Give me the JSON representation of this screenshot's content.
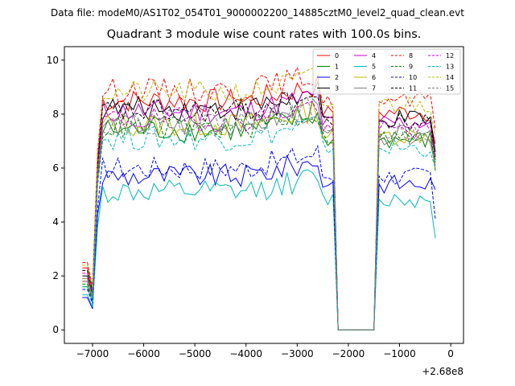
{
  "figure": {
    "suptitle": "Data file: modeM0/AS1T02_054T01_9000002200_14885cztM0_level2_quad_clean.evt",
    "title": "Quadrant 3 module wise count rates with 100.0s bins."
  },
  "chart_data": {
    "type": "line",
    "title": "Quadrant 3 module wise count rates with 100.0s bins.",
    "xlabel": "",
    "ylabel": "",
    "x_offset_label": "+2.68e8",
    "xlim": [
      -7550,
      250
    ],
    "ylim": [
      -0.5,
      10.5
    ],
    "xticks": [
      -7000,
      -6000,
      -5000,
      -4000,
      -3000,
      -2000,
      -1000,
      0
    ],
    "xtick_labels": [
      "−7000",
      "−6000",
      "−5000",
      "−4000",
      "−3000",
      "−2000",
      "−1000",
      "0"
    ],
    "yticks": [
      0,
      2,
      4,
      6,
      8,
      10
    ],
    "ytick_labels": [
      "0",
      "2",
      "4",
      "6",
      "8",
      "10"
    ],
    "grid": false,
    "legend_position": "top-right",
    "legend_columns": 4,
    "segments": [
      {
        "x_start": -7200,
        "x_end": -2300,
        "step": 100
      },
      {
        "x_start": -2300,
        "x_end": -1500,
        "step": 100
      },
      {
        "x_start": -1400,
        "x_end": -300,
        "step": 100
      }
    ],
    "series": [
      {
        "name": "0",
        "color": "#ff0000",
        "dash": "solid",
        "base": 8.5,
        "tail": 6.9
      },
      {
        "name": "1",
        "color": "#008000",
        "dash": "solid",
        "base": 7.4,
        "tail": 5.9
      },
      {
        "name": "2",
        "color": "#0000ff",
        "dash": "solid",
        "base": 5.7,
        "tail": 5.2
      },
      {
        "name": "3",
        "color": "#000000",
        "dash": "solid",
        "base": 8.2,
        "tail": 6.6
      },
      {
        "name": "4",
        "color": "#cc00cc",
        "dash": "solid",
        "base": 8.1,
        "tail": 6.4
      },
      {
        "name": "5",
        "color": "#00bbbb",
        "dash": "solid",
        "base": 5.1,
        "tail": 3.4
      },
      {
        "name": "6",
        "color": "#bbbb00",
        "dash": "solid",
        "base": 7.6,
        "tail": 6.0
      },
      {
        "name": "7",
        "color": "#808080",
        "dash": "solid",
        "base": 7.6,
        "tail": 6.1
      },
      {
        "name": "8",
        "color": "#ff0000",
        "dash": "dashed",
        "base": 8.9,
        "tail": 7.4
      },
      {
        "name": "9",
        "color": "#008000",
        "dash": "dashed",
        "base": 7.5,
        "tail": 6.2
      },
      {
        "name": "10",
        "color": "#0000ff",
        "dash": "dashed",
        "base": 6.0,
        "tail": 4.1
      },
      {
        "name": "11",
        "color": "#000000",
        "dash": "dashed",
        "base": 8.1,
        "tail": 6.3
      },
      {
        "name": "12",
        "color": "#cc00cc",
        "dash": "dashed",
        "base": 7.8,
        "tail": 6.5
      },
      {
        "name": "13",
        "color": "#00bbbb",
        "dash": "dashed",
        "base": 7.1,
        "tail": 6.0
      },
      {
        "name": "14",
        "color": "#bbbb00",
        "dash": "dashed",
        "base": 8.8,
        "tail": 7.2
      },
      {
        "name": "15",
        "color": "#808080",
        "dash": "dashed",
        "base": 7.7,
        "tail": 6.1
      }
    ],
    "start_values": [
      2.3,
      1.6,
      1.2,
      2.0,
      1.8,
      1.3,
      1.9,
      1.8,
      2.5,
      1.7,
      1.5,
      2.2,
      2.1,
      1.6,
      2.4,
      1.9
    ]
  }
}
